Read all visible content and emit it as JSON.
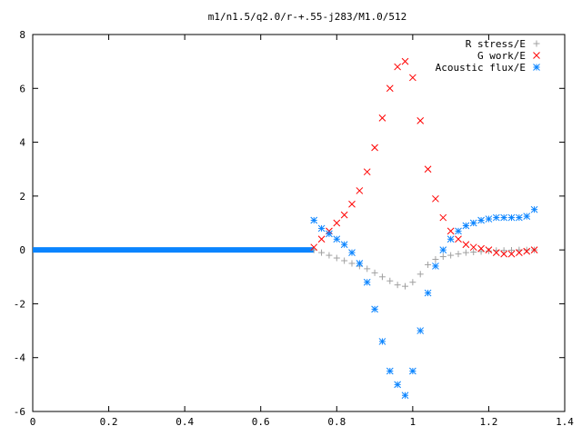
{
  "chart_data": {
    "type": "scatter",
    "title": "m1/n1.5/q2.0/r-+.55-j283/M1.0/512",
    "xlabel": "",
    "ylabel": "",
    "xlim": [
      0,
      1.4
    ],
    "ylim": [
      -6,
      8
    ],
    "xticks": [
      "0",
      "0.2",
      "0.4",
      "0.6",
      "0.8",
      "1",
      "1.2",
      "1.4"
    ],
    "yticks": [
      "-6",
      "-4",
      "-2",
      "0",
      "2",
      "4",
      "6",
      "8"
    ],
    "grid": false,
    "legend_position": "top-right",
    "series": [
      {
        "name": "R stress/E",
        "marker": "plus",
        "color": "#a0a0a0",
        "x": [
          0.74,
          0.76,
          0.78,
          0.8,
          0.82,
          0.84,
          0.86,
          0.88,
          0.9,
          0.92,
          0.94,
          0.96,
          0.98,
          1.0,
          1.02,
          1.04,
          1.06,
          1.08,
          1.1,
          1.12,
          1.14,
          1.16,
          1.18,
          1.2,
          1.22,
          1.24,
          1.26,
          1.28,
          1.3,
          1.32
        ],
        "y": [
          0.0,
          -0.1,
          -0.2,
          -0.3,
          -0.4,
          -0.5,
          -0.6,
          -0.7,
          -0.85,
          -1.0,
          -1.15,
          -1.3,
          -1.35,
          -1.2,
          -0.9,
          -0.55,
          -0.35,
          -0.25,
          -0.2,
          -0.15,
          -0.1,
          -0.08,
          -0.06,
          -0.04,
          -0.02,
          -0.02,
          -0.01,
          0.0,
          0.0,
          0.0
        ]
      },
      {
        "name": "G work/E",
        "marker": "cross",
        "color": "#ff0000",
        "x": [
          0.74,
          0.76,
          0.78,
          0.8,
          0.82,
          0.84,
          0.86,
          0.88,
          0.9,
          0.92,
          0.94,
          0.96,
          0.98,
          1.0,
          1.02,
          1.04,
          1.06,
          1.08,
          1.1,
          1.12,
          1.14,
          1.16,
          1.18,
          1.2,
          1.22,
          1.24,
          1.26,
          1.28,
          1.3,
          1.32
        ],
        "y": [
          0.1,
          0.4,
          0.7,
          1.0,
          1.3,
          1.7,
          2.2,
          2.9,
          3.8,
          4.9,
          6.0,
          6.8,
          7.0,
          6.4,
          4.8,
          3.0,
          1.9,
          1.2,
          0.7,
          0.4,
          0.2,
          0.1,
          0.05,
          0.0,
          -0.1,
          -0.15,
          -0.15,
          -0.1,
          -0.05,
          0.0
        ]
      },
      {
        "name": "Acoustic flux/E",
        "marker": "star",
        "color": "#0a84ff",
        "x": [
          0.74,
          0.76,
          0.78,
          0.8,
          0.82,
          0.84,
          0.86,
          0.88,
          0.9,
          0.92,
          0.94,
          0.96,
          0.98,
          1.0,
          1.02,
          1.04,
          1.06,
          1.08,
          1.1,
          1.12,
          1.14,
          1.16,
          1.18,
          1.2,
          1.22,
          1.24,
          1.26,
          1.28,
          1.3,
          1.32
        ],
        "y": [
          1.1,
          0.8,
          0.6,
          0.4,
          0.2,
          -0.1,
          -0.5,
          -1.2,
          -2.2,
          -3.4,
          -4.5,
          -5.0,
          -5.4,
          -4.5,
          -3.0,
          -1.6,
          -0.6,
          0.0,
          0.4,
          0.7,
          0.9,
          1.0,
          1.1,
          1.15,
          1.2,
          1.2,
          1.2,
          1.2,
          1.25,
          1.5
        ]
      }
    ]
  }
}
